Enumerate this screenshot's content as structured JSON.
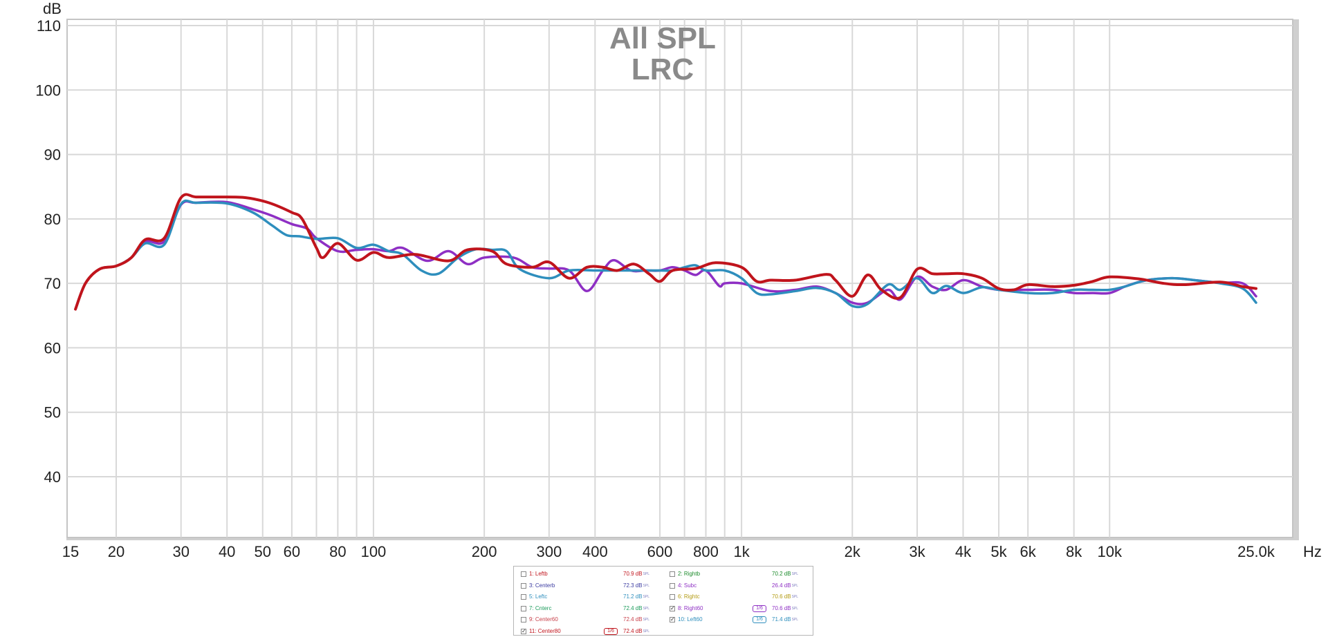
{
  "chart_data": {
    "type": "line",
    "title_lines": [
      "All SPL",
      "LRC"
    ],
    "ylabel": "dB",
    "xunit": "Hz",
    "x_scale": "log",
    "xlim": [
      15,
      25000
    ],
    "ylim": [
      30,
      111
    ],
    "grid": true,
    "y_ticks": [
      40,
      50,
      60,
      70,
      80,
      90,
      100,
      110
    ],
    "x_ticks": [
      {
        "value": 15,
        "label": "15"
      },
      {
        "value": 20,
        "label": "20"
      },
      {
        "value": 30,
        "label": "30"
      },
      {
        "value": 40,
        "label": "40"
      },
      {
        "value": 50,
        "label": "50"
      },
      {
        "value": 60,
        "label": "60"
      },
      {
        "value": 80,
        "label": "80"
      },
      {
        "value": 100,
        "label": "100"
      },
      {
        "value": 200,
        "label": "200"
      },
      {
        "value": 300,
        "label": "300"
      },
      {
        "value": 400,
        "label": "400"
      },
      {
        "value": 600,
        "label": "600"
      },
      {
        "value": 800,
        "label": "800"
      },
      {
        "value": 1000,
        "label": "1k"
      },
      {
        "value": 2000,
        "label": "2k"
      },
      {
        "value": 3000,
        "label": "3k"
      },
      {
        "value": 4000,
        "label": "4k"
      },
      {
        "value": 5000,
        "label": "5k"
      },
      {
        "value": 6000,
        "label": "6k"
      },
      {
        "value": 8000,
        "label": "8k"
      },
      {
        "value": 10000,
        "label": "10k"
      },
      {
        "value": 25000,
        "label": "25.0k"
      }
    ],
    "x_minor_gridlines": [
      70,
      90,
      700,
      900
    ],
    "series": [
      {
        "name": "8: Right60",
        "color": "#8e2fc4",
        "points": [
          [
            15.5,
            66
          ],
          [
            16.5,
            70
          ],
          [
            18,
            72.2
          ],
          [
            20,
            72.7
          ],
          [
            22,
            74
          ],
          [
            24,
            76.5
          ],
          [
            27,
            76.5
          ],
          [
            30,
            82.2
          ],
          [
            33,
            82.5
          ],
          [
            40,
            82.6
          ],
          [
            47,
            81.5
          ],
          [
            53,
            80.5
          ],
          [
            60,
            79.2
          ],
          [
            66,
            78.5
          ],
          [
            70,
            77
          ],
          [
            80,
            75
          ],
          [
            90,
            75.2
          ],
          [
            100,
            75.3
          ],
          [
            110,
            75
          ],
          [
            120,
            75.5
          ],
          [
            140,
            73.5
          ],
          [
            160,
            75
          ],
          [
            180,
            73
          ],
          [
            200,
            74
          ],
          [
            240,
            74
          ],
          [
            270,
            72.5
          ],
          [
            300,
            72.3
          ],
          [
            340,
            72
          ],
          [
            380,
            68.8
          ],
          [
            420,
            72
          ],
          [
            450,
            73.6
          ],
          [
            500,
            72
          ],
          [
            550,
            72
          ],
          [
            600,
            72
          ],
          [
            650,
            72.5
          ],
          [
            700,
            72
          ],
          [
            750,
            71.3
          ],
          [
            800,
            72
          ],
          [
            870,
            69.6
          ],
          [
            900,
            70
          ],
          [
            1000,
            70
          ],
          [
            1200,
            68.8
          ],
          [
            1400,
            69
          ],
          [
            1600,
            69.5
          ],
          [
            1800,
            68.5
          ],
          [
            2000,
            67
          ],
          [
            2200,
            67
          ],
          [
            2500,
            69
          ],
          [
            2700,
            67.5
          ],
          [
            3000,
            71
          ],
          [
            3300,
            69.5
          ],
          [
            3600,
            69
          ],
          [
            4000,
            70.5
          ],
          [
            4500,
            69.5
          ],
          [
            5000,
            69
          ],
          [
            5500,
            69
          ],
          [
            6000,
            69
          ],
          [
            7000,
            69
          ],
          [
            8000,
            68.5
          ],
          [
            9000,
            68.5
          ],
          [
            10000,
            68.5
          ],
          [
            11000,
            69.5
          ],
          [
            12000,
            70.2
          ],
          [
            13000,
            70.6
          ],
          [
            15000,
            70.8
          ],
          [
            17000,
            70.5
          ],
          [
            20000,
            70.1
          ],
          [
            23000,
            70
          ],
          [
            25000,
            68
          ]
        ]
      },
      {
        "name": "10: Left60",
        "color": "#2e8ebd",
        "points": [
          [
            15.5,
            66
          ],
          [
            16.5,
            70
          ],
          [
            18,
            72.2
          ],
          [
            20,
            72.7
          ],
          [
            22,
            74
          ],
          [
            24,
            76.2
          ],
          [
            27,
            76
          ],
          [
            30,
            82.3
          ],
          [
            33,
            82.5
          ],
          [
            40,
            82.4
          ],
          [
            47,
            81
          ],
          [
            53,
            79
          ],
          [
            58,
            77.5
          ],
          [
            63,
            77.3
          ],
          [
            70,
            76.9
          ],
          [
            80,
            77
          ],
          [
            90,
            75.5
          ],
          [
            100,
            76
          ],
          [
            110,
            75
          ],
          [
            120,
            74.5
          ],
          [
            135,
            72
          ],
          [
            150,
            71.5
          ],
          [
            170,
            74
          ],
          [
            190,
            75.3
          ],
          [
            210,
            75.2
          ],
          [
            230,
            75
          ],
          [
            250,
            72.2
          ],
          [
            300,
            70.8
          ],
          [
            340,
            72
          ],
          [
            400,
            72
          ],
          [
            450,
            72
          ],
          [
            500,
            72
          ],
          [
            600,
            72
          ],
          [
            650,
            72
          ],
          [
            700,
            72.5
          ],
          [
            750,
            72.8
          ],
          [
            800,
            72
          ],
          [
            900,
            72
          ],
          [
            1000,
            70.8
          ],
          [
            1100,
            68.5
          ],
          [
            1200,
            68.3
          ],
          [
            1400,
            68.8
          ],
          [
            1600,
            69.3
          ],
          [
            1800,
            68.5
          ],
          [
            2000,
            66.5
          ],
          [
            2200,
            66.8
          ],
          [
            2500,
            69.8
          ],
          [
            2700,
            69
          ],
          [
            3000,
            70.8
          ],
          [
            3300,
            68.5
          ],
          [
            3600,
            69.6
          ],
          [
            4000,
            68.5
          ],
          [
            4500,
            69.4
          ],
          [
            5000,
            69
          ],
          [
            6000,
            68.5
          ],
          [
            7000,
            68.5
          ],
          [
            8000,
            69
          ],
          [
            9000,
            69
          ],
          [
            10000,
            69
          ],
          [
            11000,
            69.5
          ],
          [
            12000,
            70.2
          ],
          [
            13000,
            70.6
          ],
          [
            15000,
            70.8
          ],
          [
            17000,
            70.5
          ],
          [
            20000,
            70
          ],
          [
            23000,
            69.2
          ],
          [
            25000,
            67
          ]
        ]
      },
      {
        "name": "11: Center80",
        "color": "#c0141c",
        "points": [
          [
            15.5,
            66
          ],
          [
            16.5,
            70
          ],
          [
            18,
            72.2
          ],
          [
            20,
            72.7
          ],
          [
            22,
            74
          ],
          [
            24,
            76.8
          ],
          [
            27,
            77
          ],
          [
            30,
            83.3
          ],
          [
            33,
            83.4
          ],
          [
            38,
            83.4
          ],
          [
            45,
            83.3
          ],
          [
            52,
            82.5
          ],
          [
            60,
            81
          ],
          [
            64,
            80
          ],
          [
            70,
            75.5
          ],
          [
            73,
            74
          ],
          [
            80,
            76.2
          ],
          [
            90,
            73.6
          ],
          [
            100,
            74.8
          ],
          [
            110,
            74
          ],
          [
            130,
            74.5
          ],
          [
            160,
            73.5
          ],
          [
            180,
            75.2
          ],
          [
            210,
            75
          ],
          [
            230,
            73
          ],
          [
            270,
            72.5
          ],
          [
            300,
            73.3
          ],
          [
            340,
            70.8
          ],
          [
            380,
            72.5
          ],
          [
            420,
            72.5
          ],
          [
            460,
            72
          ],
          [
            510,
            73
          ],
          [
            560,
            71.5
          ],
          [
            600,
            70.3
          ],
          [
            650,
            72
          ],
          [
            750,
            72.3
          ],
          [
            850,
            73.2
          ],
          [
            1000,
            72.5
          ],
          [
            1100,
            70.3
          ],
          [
            1200,
            70.5
          ],
          [
            1400,
            70.5
          ],
          [
            1700,
            71.4
          ],
          [
            1800,
            70.5
          ],
          [
            2000,
            68
          ],
          [
            2200,
            71.3
          ],
          [
            2400,
            69
          ],
          [
            2700,
            67.8
          ],
          [
            3000,
            72.2
          ],
          [
            3300,
            71.5
          ],
          [
            3600,
            71.5
          ],
          [
            4000,
            71.5
          ],
          [
            4500,
            70.8
          ],
          [
            5000,
            69.2
          ],
          [
            5500,
            69
          ],
          [
            6000,
            69.8
          ],
          [
            7000,
            69.5
          ],
          [
            8000,
            69.7
          ],
          [
            9000,
            70.3
          ],
          [
            10000,
            71
          ],
          [
            12000,
            70.7
          ],
          [
            14000,
            70
          ],
          [
            16000,
            69.8
          ],
          [
            20000,
            70.2
          ],
          [
            23000,
            69.5
          ],
          [
            25000,
            69.2
          ]
        ]
      }
    ]
  },
  "legend": {
    "rows": [
      [
        {
          "label": "1: Leftb",
          "value": "70.9 dB",
          "color": "#c0141c",
          "checked": false
        },
        {
          "label": "2: Rightb",
          "value": "70.2 dB",
          "color": "#1a8a2a",
          "checked": false
        }
      ],
      [
        {
          "label": "3: Centerb",
          "value": "72.3 dB",
          "color": "#3a3aa0",
          "checked": false
        },
        {
          "label": "4: Subc",
          "value": "26.4 dB",
          "color": "#8e2fc4",
          "checked": false
        }
      ],
      [
        {
          "label": "5: Leftc",
          "value": "71.2 dB",
          "color": "#2e8ebd",
          "checked": false
        },
        {
          "label": "6: Rightc",
          "value": "70.6 dB",
          "color": "#b29a10",
          "checked": false
        }
      ],
      [
        {
          "label": "7: Cnterc",
          "value": "72.4 dB",
          "color": "#1a9a5a",
          "checked": false
        },
        {
          "label": "8: Right60",
          "value": "70.6 dB",
          "color": "#8e2fc4",
          "checked": true,
          "smoothing": "1/6"
        }
      ],
      [
        {
          "label": "9: Center60",
          "value": "72.4 dB",
          "color": "#c8404a",
          "checked": false
        },
        {
          "label": "10: Left60",
          "value": "71.4 dB",
          "color": "#2e8ebd",
          "checked": true,
          "smoothing": "1/6"
        }
      ],
      [
        {
          "label": "11: Center80",
          "value": "72.4 dB",
          "color": "#c0141c",
          "checked": true,
          "smoothing": "1/6"
        }
      ]
    ],
    "value_unit": "SPL",
    "check_mark": "✓"
  }
}
